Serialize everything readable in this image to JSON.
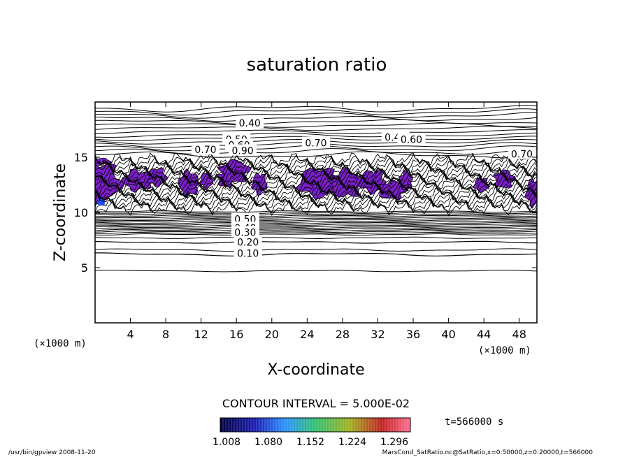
{
  "chart_data": {
    "type": "contour",
    "title": "saturation ratio",
    "xlabel": "X-coordinate",
    "ylabel": "Z-coordinate",
    "x_unit_label": "(×1000 m)",
    "x_unit_label_left": "(×1000 m)",
    "x_ticks": [
      4,
      8,
      12,
      16,
      20,
      24,
      28,
      32,
      36,
      40,
      44,
      48
    ],
    "y_ticks": [
      5,
      10,
      15
    ],
    "xlim": [
      0,
      50
    ],
    "ylim": [
      0,
      20
    ],
    "contour_interval_text": "CONTOUR INTERVAL = 5.000E-02",
    "contour_labels": [
      {
        "text": "0.40",
        "x": 17.5,
        "z": 18.1
      },
      {
        "text": "0.50",
        "x": 16.0,
        "z": 16.6
      },
      {
        "text": "0.60",
        "x": 16.3,
        "z": 16.1
      },
      {
        "text": "0.70",
        "x": 12.5,
        "z": 15.7
      },
      {
        "text": "0.90",
        "x": 16.7,
        "z": 15.6
      },
      {
        "text": "0.70",
        "x": 25.0,
        "z": 16.3
      },
      {
        "text": "0.40",
        "x": 34.0,
        "z": 16.8
      },
      {
        "text": "0.60",
        "x": 35.8,
        "z": 16.6
      },
      {
        "text": "0.70",
        "x": 48.3,
        "z": 15.3
      },
      {
        "text": "0.50",
        "x": 17.0,
        "z": 9.4
      },
      {
        "text": "0.40",
        "x": 17.0,
        "z": 8.6
      },
      {
        "text": "0.30",
        "x": 17.0,
        "z": 8.2
      },
      {
        "text": "0.20",
        "x": 17.3,
        "z": 7.3
      },
      {
        "text": "0.10",
        "x": 17.3,
        "z": 6.3
      }
    ],
    "colorbar": {
      "tick_labels": [
        "1.008",
        "1.080",
        "1.152",
        "1.224",
        "1.296"
      ],
      "colors": [
        "#000060",
        "#2020c0",
        "#20a0ff",
        "#20c060",
        "#c0c020",
        "#c02020",
        "#ff6080"
      ]
    },
    "supersaturated_color": "#7a1fc8",
    "time_label": "t=566000 s"
  },
  "footer": {
    "left": "/usr/bin/gpview  2008-11-20",
    "right": "MarsCond_SatRatio.nc@SatRatio,x=0:50000,z=0:20000,t=566000"
  }
}
